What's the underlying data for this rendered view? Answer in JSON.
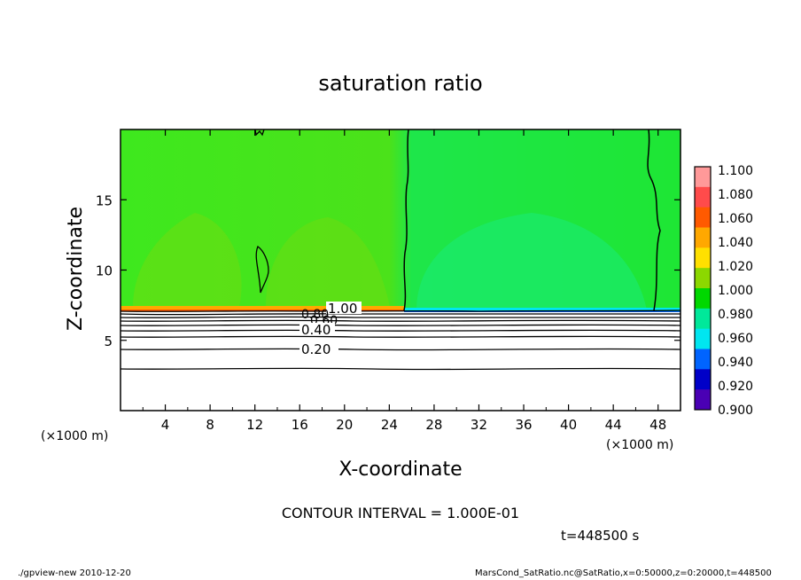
{
  "chart_data": {
    "type": "heatmap",
    "title": "saturation ratio",
    "xlabel": "X-coordinate",
    "ylabel": "Z-coordinate",
    "x_unit": "(×1000 m)",
    "y_unit": "(×1000 m)",
    "xlim": [
      0,
      50
    ],
    "ylim": [
      0,
      20
    ],
    "x_ticks": [
      4,
      8,
      12,
      16,
      20,
      24,
      28,
      32,
      36,
      40,
      44,
      48
    ],
    "y_ticks": [
      5,
      10,
      15
    ],
    "colorbar": {
      "levels": [
        1.1,
        1.08,
        1.06,
        1.04,
        1.02,
        1.0,
        0.98,
        0.96,
        0.94,
        0.92,
        0.9
      ],
      "labels": [
        "1.100",
        "1.080",
        "1.060",
        "1.040",
        "1.020",
        "1.000",
        "0.980",
        "0.960",
        "0.940",
        "0.920",
        "0.900"
      ],
      "colors": [
        "#ff9999",
        "#ff4b4b",
        "#ff5a00",
        "#ffa800",
        "#ffe000",
        "#8cd800",
        "#00d800",
        "#00e89a",
        "#00e6f0",
        "#0064ff",
        "#0000c8",
        "#4a00b4"
      ]
    },
    "contour_labels": [
      "1.00",
      "0.80",
      "0.60",
      "0.40",
      "0.20"
    ],
    "contour_interval_text": "CONTOUR INTERVAL = 1.000E-01",
    "time_text": "t=448500 s"
  },
  "footer": {
    "left": "./gpview-new  2010-12-20",
    "right": "MarsCond_SatRatio.nc@SatRatio,x=0:50000,z=0:20000,t=448500"
  },
  "colors": {
    "field_green": "#1ee61e",
    "field_yellowgreen": "#7cde0c",
    "field_cyan": "#1aeb66",
    "dry_white": "#ffffff"
  }
}
